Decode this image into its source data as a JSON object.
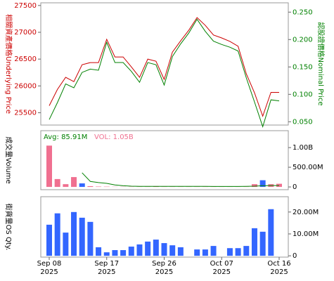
{
  "chart_data": [
    {
      "type": "line",
      "ylabel": "相關資產價格Underlying Price",
      "y2label": "認股證價格Nominal Price",
      "ylim": [
        25270,
        27550
      ],
      "yticks": [
        25500,
        26000,
        26500,
        27000,
        27500
      ],
      "y2lim": [
        0.044,
        0.267
      ],
      "y2ticks": [
        {
          "value": 0.05,
          "label": "0.050"
        },
        {
          "value": 0.1,
          "label": "0.100"
        },
        {
          "value": 0.15,
          "label": "0.150"
        },
        {
          "value": 0.2,
          "label": "0.200"
        },
        {
          "value": 0.25,
          "label": "0.250"
        }
      ],
      "series": [
        {
          "color": "#cc0000",
          "axis": "y",
          "values": [
            25630,
            25935,
            26160,
            26080,
            26395,
            26435,
            26435,
            26870,
            26540,
            26540,
            26355,
            26160,
            26500,
            26460,
            26120,
            26630,
            26840,
            27040,
            27275,
            27130,
            26950,
            26895,
            26830,
            26740,
            26225,
            25870,
            25435,
            25880,
            25880
          ]
        },
        {
          "color": "#008000",
          "axis": "y2",
          "values": [
            0.054,
            0.085,
            0.119,
            0.112,
            0.14,
            0.146,
            0.144,
            0.195,
            0.158,
            0.158,
            0.142,
            0.122,
            0.158,
            0.154,
            0.117,
            0.169,
            0.192,
            0.212,
            0.237,
            0.215,
            0.197,
            0.191,
            0.186,
            0.179,
            0.13,
            0.086,
            0.041,
            0.09,
            0.088
          ]
        }
      ]
    },
    {
      "type": "bar",
      "ylabel": "成交量Volume",
      "avg_label": "Avg: 85.91M",
      "vol_label": "VOL: 1.05B",
      "ylim": [
        -70000000,
        1430000000
      ],
      "yticks": [
        0,
        {
          "value": 500000000,
          "label": "500.00M"
        },
        {
          "value": 1000000000,
          "label": "1.00B"
        }
      ],
      "series": [
        {
          "type": "bar",
          "colors": [
            "#f07090",
            "#f07090",
            "#f07090",
            "#f07090",
            "#3366ff",
            "#f07090",
            "#f07090",
            "#f07090",
            "#f07090",
            "#f07090",
            "#f07090",
            "#f07090",
            "#f07090",
            "#f07090",
            "#f07090",
            "#f07090",
            "#f07090",
            "#f07090",
            "#f07090",
            "#f07090",
            "#f07090",
            "#f07090",
            "#f07090",
            "#f07090",
            "#f07090",
            "#f07090",
            "#3366ff",
            "#f07090",
            "#f07090"
          ],
          "values": [
            1050000000,
            200000000,
            70000000,
            250000000,
            90000000,
            20000000,
            10000000,
            8000000,
            5000000,
            5000000,
            5000000,
            5000000,
            5000000,
            10000000,
            5000000,
            5000000,
            5000000,
            5000000,
            5000000,
            5000000,
            5000000,
            3000000,
            3000000,
            3000000,
            5000000,
            70000000,
            170000000,
            70000000,
            80000000
          ]
        },
        {
          "type": "line",
          "color": "#008000",
          "values": [
            null,
            null,
            null,
            null,
            360000000,
            140000000,
            110000000,
            90000000,
            50000000,
            30000000,
            20000000,
            15000000,
            15000000,
            15000000,
            15000000,
            15000000,
            15000000,
            15000000,
            15000000,
            15000000,
            12000000,
            12000000,
            12000000,
            12000000,
            15000000,
            20000000,
            30000000,
            35000000,
            35000000
          ]
        }
      ]
    },
    {
      "type": "bar",
      "ylabel": "街貨量OS Qty.",
      "color": "#3366ff",
      "ylim": [
        -600000,
        27000000
      ],
      "yticks": [
        0,
        {
          "value": 10000000,
          "label": "10.00M"
        },
        {
          "value": 20000000,
          "label": "20.00M"
        }
      ],
      "categories": [
        "Sep 08 2025",
        null,
        null,
        null,
        null,
        null,
        null,
        "Sep 17 2025",
        null,
        null,
        null,
        null,
        null,
        null,
        "Sep 26 2025",
        null,
        null,
        null,
        null,
        null,
        null,
        "Oct 07 2025",
        null,
        null,
        null,
        null,
        null,
        null,
        "Oct 16 2025"
      ],
      "values": [
        14200000,
        19400000,
        10600000,
        20000000,
        17400000,
        15500000,
        3900000,
        1600000,
        2600000,
        2600000,
        4200000,
        5200000,
        6500000,
        7400000,
        5800000,
        4800000,
        3900000,
        null,
        2900000,
        2900000,
        4500000,
        null,
        3500000,
        3500000,
        4500000,
        12600000,
        11000000,
        21300000,
        null
      ]
    }
  ]
}
